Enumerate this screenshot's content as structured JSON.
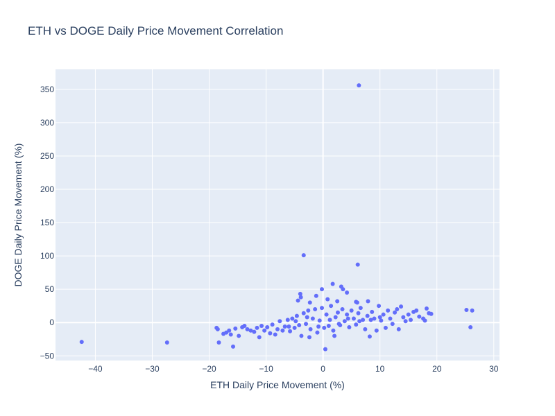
{
  "chart_data": {
    "type": "scatter",
    "title": "ETH vs DOGE Daily Price Movement Correlation",
    "xlabel": "ETH Daily Price Movement (%)",
    "ylabel": "DOGE Daily Price Movement (%)",
    "xlim": [
      -47,
      31
    ],
    "ylim": [
      -57,
      380
    ],
    "xticks": [
      -40,
      -30,
      -20,
      -10,
      0,
      10,
      20,
      30
    ],
    "yticks": [
      -50,
      0,
      50,
      100,
      150,
      200,
      250,
      300,
      350
    ],
    "grid": true,
    "marker_color": "#636efa",
    "plot_bg": "#e5ecf6",
    "series": [
      {
        "points": [
          [
            6.3,
            356
          ],
          [
            -3.4,
            101
          ],
          [
            6.1,
            87
          ],
          [
            -42.4,
            -29
          ],
          [
            -27.4,
            -30
          ],
          [
            25.2,
            19
          ],
          [
            26.2,
            18
          ],
          [
            25.9,
            -7
          ],
          [
            1.7,
            58
          ],
          [
            -0.2,
            50
          ],
          [
            3.2,
            54
          ],
          [
            3.5,
            50
          ],
          [
            4.2,
            45
          ],
          [
            -4.0,
            43
          ],
          [
            -3.9,
            38
          ],
          [
            -4.4,
            33
          ],
          [
            5.8,
            31
          ],
          [
            6.0,
            30
          ],
          [
            7.9,
            32
          ],
          [
            2.5,
            32
          ],
          [
            -2.3,
            30
          ],
          [
            -18.7,
            -8
          ],
          [
            -18.5,
            -10
          ],
          [
            -18.3,
            -30
          ],
          [
            -17.5,
            -17
          ],
          [
            -17.0,
            -15
          ],
          [
            -16.5,
            -12
          ],
          [
            -16.2,
            -18
          ],
          [
            -15.8,
            -36
          ],
          [
            -15.4,
            -9
          ],
          [
            -14.8,
            -20
          ],
          [
            -14.2,
            -7
          ],
          [
            -13.8,
            -5
          ],
          [
            -13.3,
            -10
          ],
          [
            -12.7,
            -12
          ],
          [
            -12.1,
            -14
          ],
          [
            -11.6,
            -8
          ],
          [
            -11.2,
            -22
          ],
          [
            -10.8,
            -5
          ],
          [
            -10.3,
            -12
          ],
          [
            -9.8,
            -7
          ],
          [
            -9.3,
            -16
          ],
          [
            -8.9,
            -3
          ],
          [
            -8.4,
            -18
          ],
          [
            -8.0,
            -10
          ],
          [
            -7.6,
            2
          ],
          [
            -7.1,
            -12
          ],
          [
            -6.7,
            -6
          ],
          [
            -6.2,
            4
          ],
          [
            -5.8,
            -13
          ],
          [
            -5.4,
            6
          ],
          [
            -5.0,
            -8
          ],
          [
            -4.6,
            10
          ],
          [
            -4.2,
            -4
          ],
          [
            -3.8,
            -20
          ],
          [
            -3.4,
            14
          ],
          [
            -3.0,
            -2
          ],
          [
            -2.6,
            18
          ],
          [
            -2.2,
            -10
          ],
          [
            -1.8,
            6
          ],
          [
            -1.4,
            20
          ],
          [
            -1.0,
            -15
          ],
          [
            -0.6,
            3
          ],
          [
            -0.2,
            22
          ],
          [
            0.2,
            -8
          ],
          [
            0.4,
            -40
          ],
          [
            0.6,
            12
          ],
          [
            1.0,
            -5
          ],
          [
            1.4,
            25
          ],
          [
            1.8,
            -12
          ],
          [
            2.2,
            8
          ],
          [
            2.6,
            15
          ],
          [
            3.0,
            -4
          ],
          [
            3.4,
            20
          ],
          [
            3.8,
            2
          ],
          [
            4.2,
            12
          ],
          [
            4.6,
            -7
          ],
          [
            5.0,
            18
          ],
          [
            5.4,
            6
          ],
          [
            5.8,
            -3
          ],
          [
            6.2,
            14
          ],
          [
            6.6,
            22
          ],
          [
            7.0,
            4
          ],
          [
            7.4,
            -10
          ],
          [
            7.8,
            10
          ],
          [
            8.2,
            -21
          ],
          [
            8.6,
            16
          ],
          [
            9.0,
            6
          ],
          [
            9.4,
            -12
          ],
          [
            9.8,
            25
          ],
          [
            10.2,
            3
          ],
          [
            10.6,
            12
          ],
          [
            11.0,
            -8
          ],
          [
            11.4,
            18
          ],
          [
            11.8,
            6
          ],
          [
            12.2,
            -2
          ],
          [
            12.6,
            15
          ],
          [
            13.0,
            20
          ],
          [
            13.3,
            -10
          ],
          [
            13.7,
            24
          ],
          [
            14.1,
            8
          ],
          [
            14.5,
            2
          ],
          [
            15.0,
            12
          ],
          [
            15.4,
            4
          ],
          [
            15.9,
            16
          ],
          [
            16.4,
            18
          ],
          [
            16.9,
            9
          ],
          [
            17.6,
            6
          ],
          [
            17.9,
            3
          ],
          [
            18.2,
            21
          ],
          [
            18.6,
            14
          ],
          [
            19.0,
            13
          ],
          [
            -1.2,
            40
          ],
          [
            0.8,
            35
          ],
          [
            2.0,
            -20
          ],
          [
            -2.4,
            -22
          ],
          [
            -6.0,
            -6
          ],
          [
            -4.8,
            2
          ],
          [
            -2.8,
            8
          ],
          [
            -0.8,
            -6
          ],
          [
            1.2,
            4
          ],
          [
            2.8,
            -2
          ],
          [
            4.4,
            6
          ],
          [
            6.4,
            2
          ],
          [
            8.4,
            4
          ],
          [
            10.0,
            8
          ]
        ]
      }
    ]
  }
}
